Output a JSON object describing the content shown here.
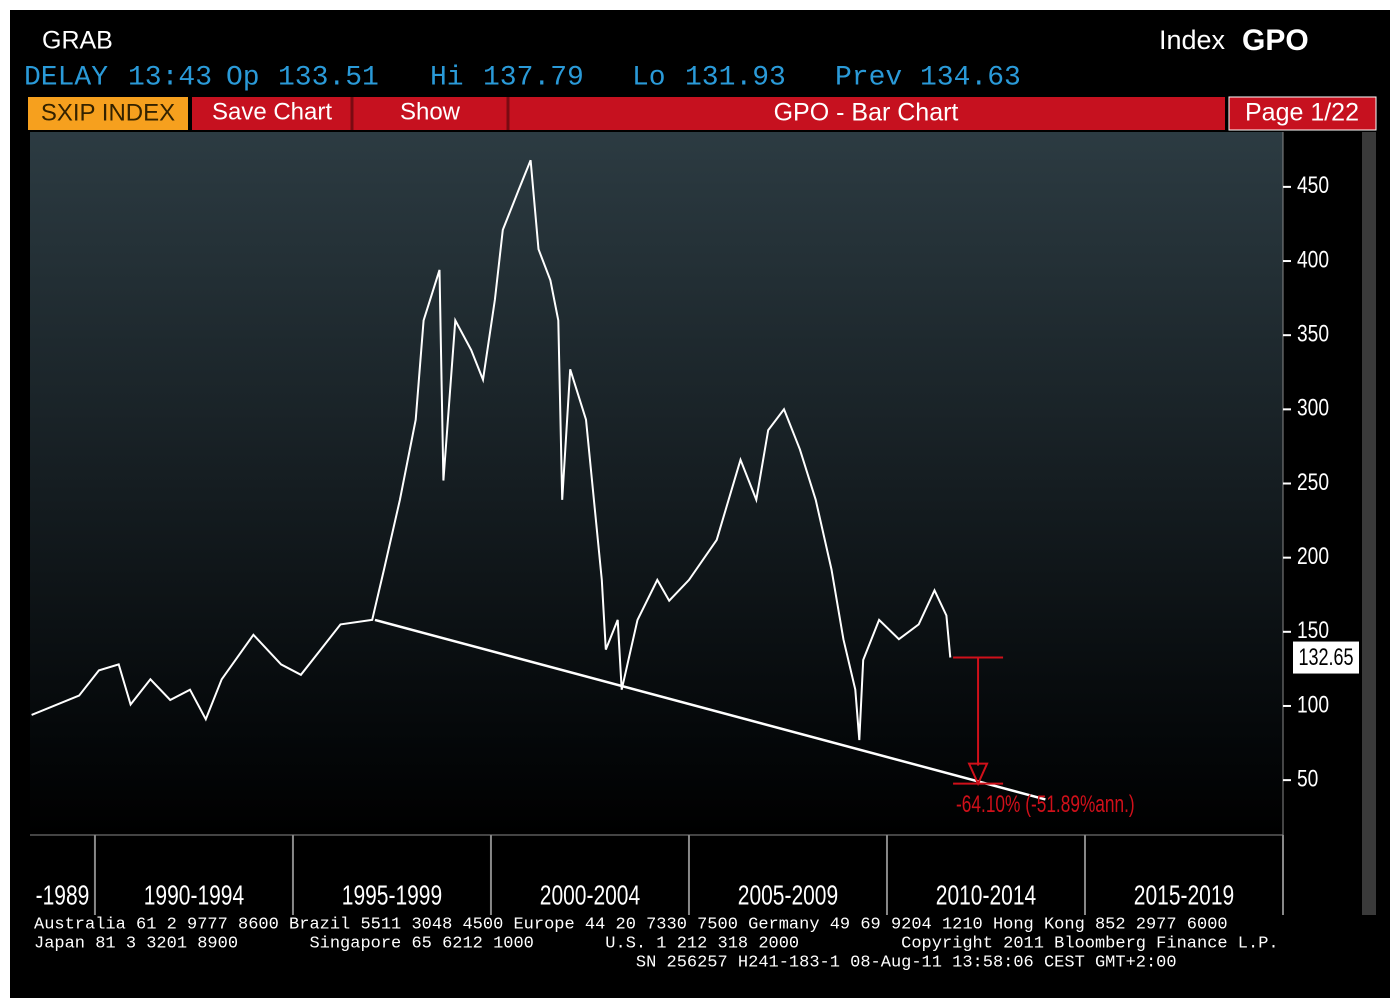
{
  "header": {
    "function": "GRAB",
    "market": "Index",
    "ticker": "GPO",
    "quotes": [
      {
        "label": "DELAY",
        "value": "13:43"
      },
      {
        "label": "Op",
        "value": "133.51"
      },
      {
        "label": "Hi",
        "value": "137.79"
      },
      {
        "label": "Lo",
        "value": "131.93"
      },
      {
        "label": "Prev",
        "value": "134.63"
      }
    ]
  },
  "toolbar": {
    "security": "SXIP INDEX",
    "buttons": [
      "Save Chart",
      "Show"
    ],
    "title": "GPO - Bar Chart",
    "page": "Page 1/22"
  },
  "chart_data": {
    "type": "line",
    "color": "#ffffff",
    "x": [
      1988.4,
      1989.6,
      1990.1,
      1990.6,
      1990.9,
      1991.4,
      1991.9,
      1992.4,
      1992.8,
      1993.2,
      1994.0,
      1994.7,
      1995.2,
      1995.7,
      1996.2,
      1997.0,
      1997.3,
      1997.7,
      1998.1,
      1998.3,
      1998.7,
      1998.8,
      1999.1,
      1999.5,
      1999.8,
      2000.1,
      2000.3,
      2000.7,
      2001.0,
      2001.2,
      2001.5,
      2001.7,
      2001.8,
      2002.0,
      2002.4,
      2002.8,
      2002.9,
      2003.2,
      2003.3,
      2003.7,
      2004.2,
      2004.5,
      2005.0,
      2005.7,
      2006.3,
      2006.7,
      2007.0,
      2007.4,
      2007.8,
      2008.2,
      2008.6,
      2008.9,
      2009.2,
      2009.3,
      2009.4,
      2009.8,
      2010.3,
      2010.8,
      2011.2,
      2011.5,
      2011.6
    ],
    "values": [
      94,
      107,
      124,
      128,
      101,
      118,
      104,
      111,
      91,
      118,
      148,
      128,
      121,
      138,
      155,
      158,
      192,
      239,
      293,
      360,
      394,
      252,
      360,
      340,
      320,
      374,
      421,
      448,
      468,
      408,
      387,
      360,
      239,
      327,
      293,
      185,
      138,
      158,
      111,
      158,
      185,
      171,
      185,
      212,
      266,
      239,
      286,
      300,
      273,
      239,
      192,
      145,
      111,
      77,
      131,
      158,
      145,
      155,
      178,
      161,
      132.65
    ],
    "last_label": "132.65",
    "ylim": [
      13,
      487
    ],
    "yticks": [
      50,
      100,
      150,
      200,
      250,
      300,
      350,
      400,
      450
    ],
    "xlim": [
      1988.36,
      2020
    ],
    "xticks": [
      1990,
      1995,
      2000,
      2005,
      2010,
      2015,
      2020
    ],
    "period_labels": [
      "-1989",
      "1990-1994",
      "1995-1999",
      "2000-2004",
      "2005-2009",
      "2010-2014",
      "2015-2019"
    ],
    "trendline": {
      "x": [
        1997.07,
        2014.0
      ],
      "values": [
        158,
        37
      ]
    },
    "annotation": {
      "text": "-64.10% (-51.89%ann.)",
      "x": 2012.3,
      "from": 132.65,
      "to": 47.62
    }
  },
  "footer": [
    "Australia 61 2 9777 8600 Brazil 5511 3048 4500 Europe 44 20 7330 7500 Germany 49 69 9204 1210 Hong Kong 852 2977 6000",
    "Japan 81 3 3201 8900       Singapore 65 6212 1000       U.S. 1 212 318 2000          Copyright 2011 Bloomberg Finance L.P.",
    "                                                           SN 256257 H241-183-1 08-Aug-11 13:58:06 CEST GMT+2:00"
  ]
}
